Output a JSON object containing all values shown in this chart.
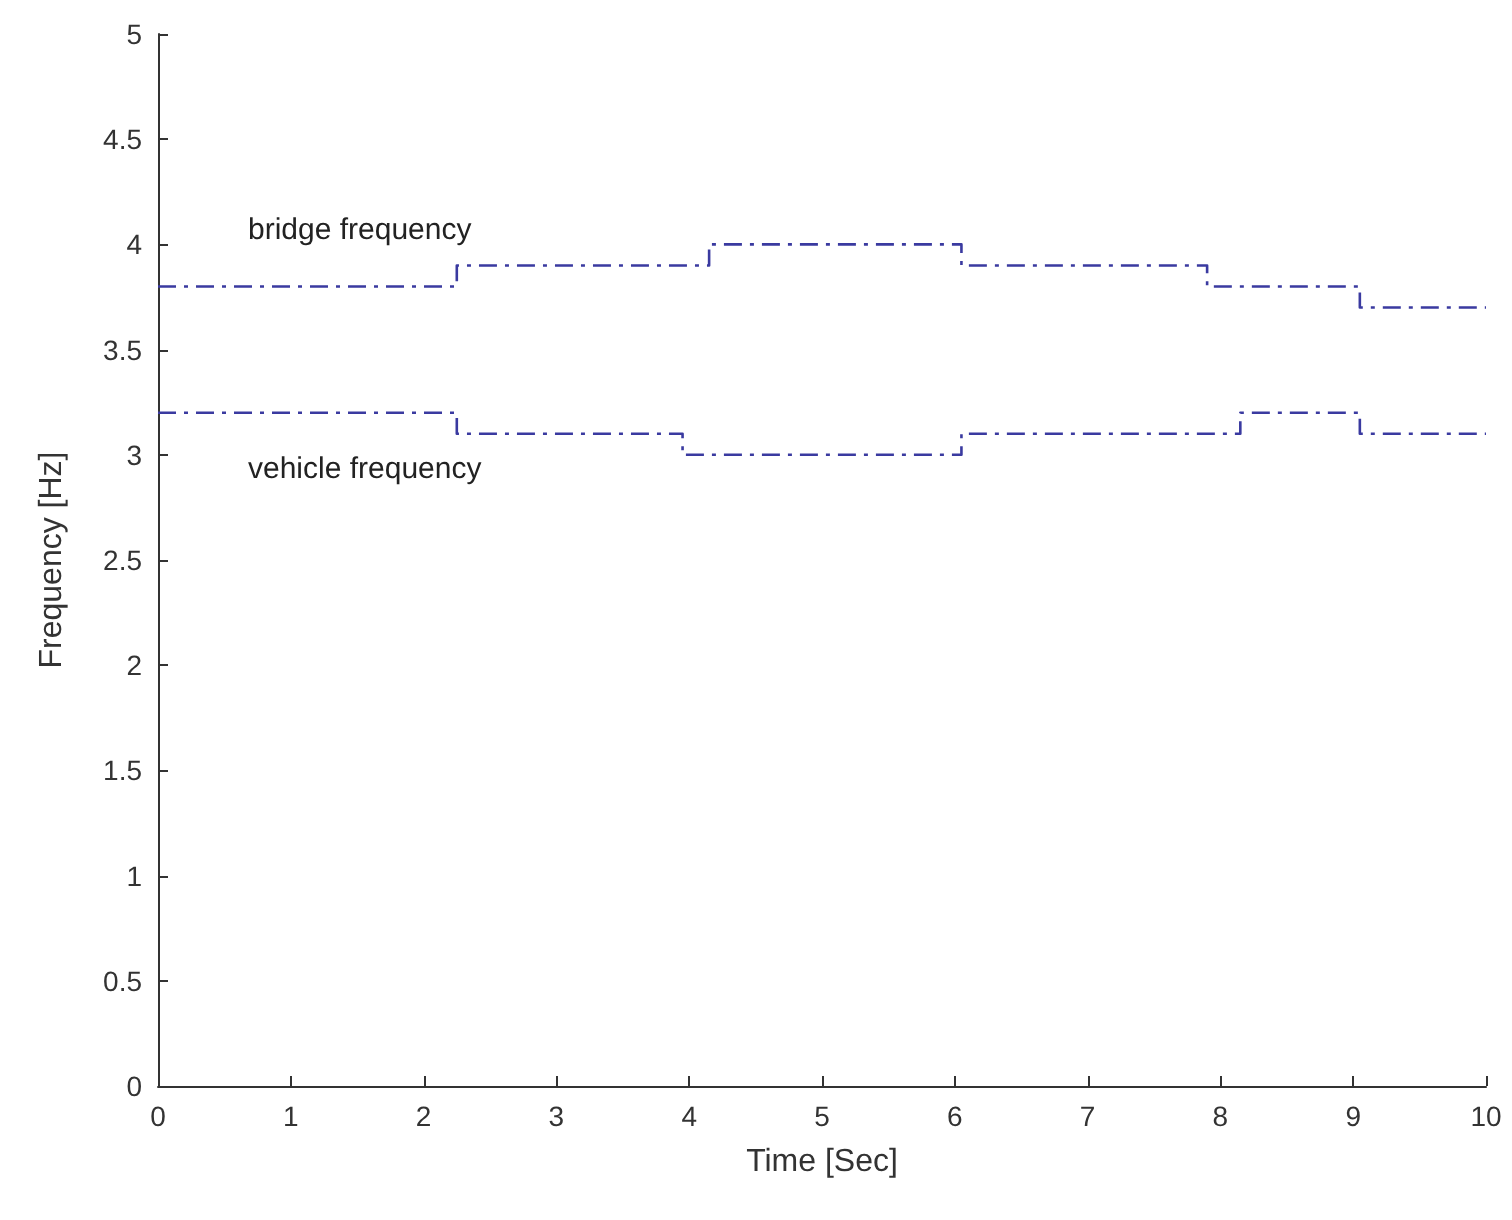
{
  "chart_data": {
    "type": "step",
    "xlabel": "Time [Sec]",
    "ylabel": "Frequency [Hz]",
    "xlim": [
      0,
      10
    ],
    "xticks": [
      0,
      1,
      2,
      3,
      4,
      5,
      6,
      7,
      8,
      9,
      10
    ],
    "ylim": [
      0,
      5
    ],
    "yticks": [
      0,
      0.5,
      1,
      1.5,
      2,
      2.5,
      3,
      3.5,
      4,
      4.5,
      5
    ],
    "grid": false,
    "marker": "none",
    "line_style": "dashed",
    "series": [
      {
        "name": "bridge frequency",
        "color": "#3a3aa0",
        "x": [
          0,
          2.25,
          4.15,
          6.05,
          7.9,
          9.05,
          10
        ],
        "values": [
          3.8,
          3.9,
          4.0,
          3.9,
          3.8,
          3.7,
          3.7
        ]
      },
      {
        "name": "vehicle frequency",
        "color": "#3a3aa0",
        "x": [
          0,
          2.25,
          3.95,
          6.05,
          8.15,
          9.05,
          10
        ],
        "values": [
          3.2,
          3.1,
          3.0,
          3.1,
          3.2,
          3.1,
          3.1
        ]
      }
    ]
  }
}
